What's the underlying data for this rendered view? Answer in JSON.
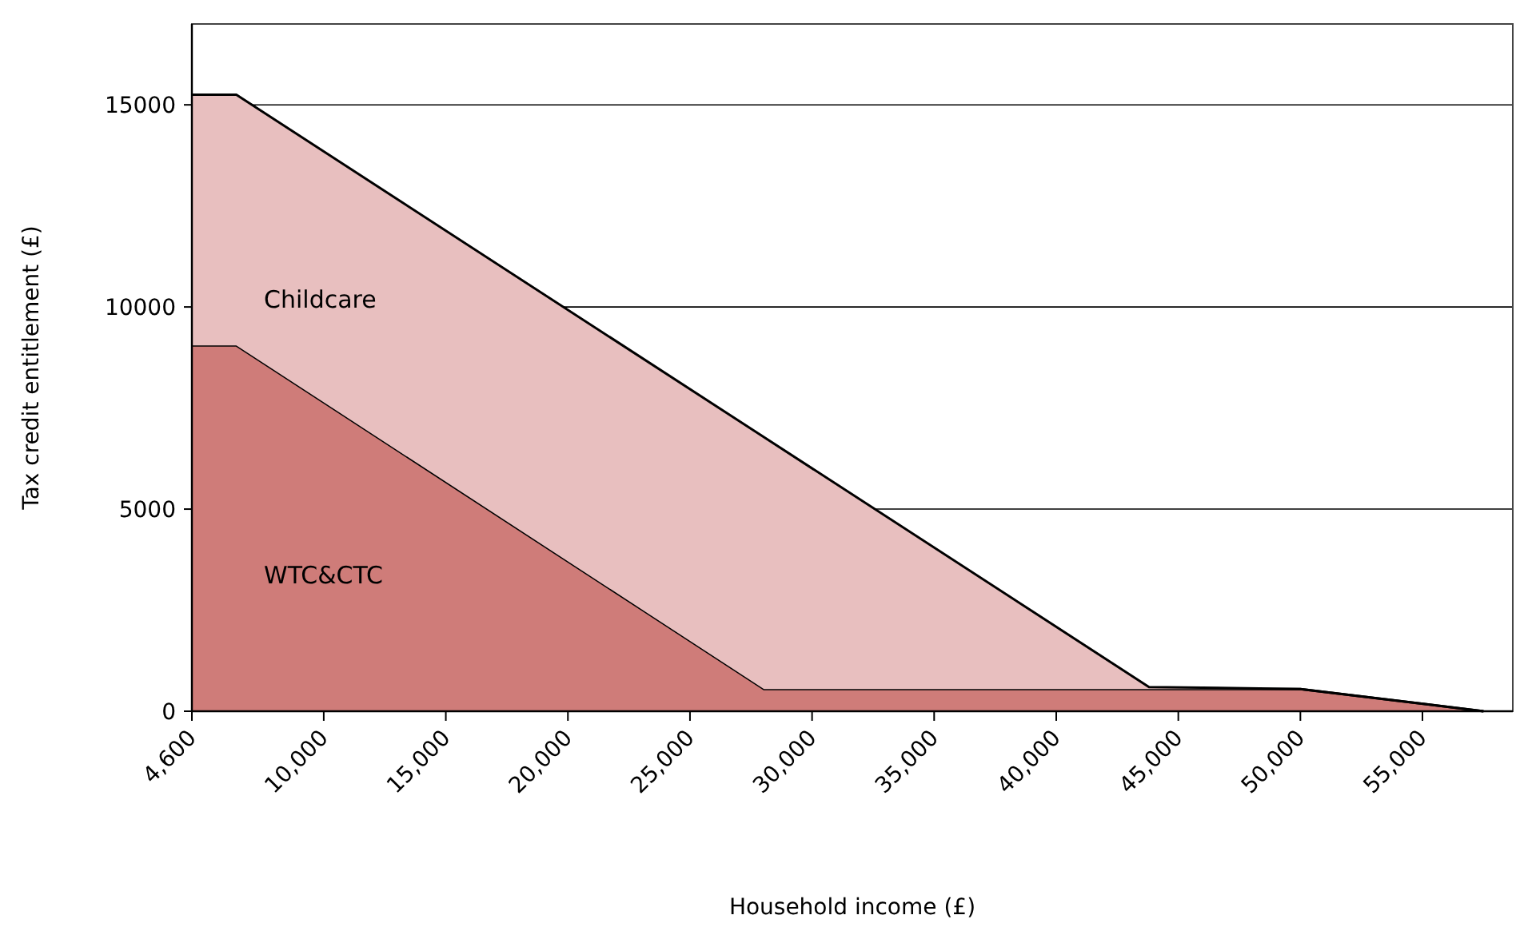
{
  "chart_data": {
    "type": "area",
    "stacked": true,
    "xlabel": "Household income (£)",
    "ylabel": "Tax credit entitlement (£)",
    "x": [
      4600,
      6420,
      28030,
      43800,
      50000,
      57500
    ],
    "series": [
      {
        "name": "WTC&CTC",
        "color": "#cf7c79",
        "values": [
          9050,
          9050,
          550,
          550,
          550,
          0
        ]
      },
      {
        "name": "Childcare",
        "color": "#e8bfbf",
        "values": [
          6200,
          6200,
          6230,
          50,
          0,
          0
        ]
      }
    ],
    "xlim": [
      4600,
      58700
    ],
    "xticks": [
      {
        "value": 4600,
        "label": "4,600"
      },
      {
        "value": 10000,
        "label": "10,000"
      },
      {
        "value": 15000,
        "label": "15,000"
      },
      {
        "value": 20000,
        "label": "20,000"
      },
      {
        "value": 25000,
        "label": "25,000"
      },
      {
        "value": 30000,
        "label": "30,000"
      },
      {
        "value": 35000,
        "label": "35,000"
      },
      {
        "value": 40000,
        "label": "40,000"
      },
      {
        "value": 45000,
        "label": "45,000"
      },
      {
        "value": 50000,
        "label": "50,000"
      },
      {
        "value": 55000,
        "label": "55,000"
      }
    ],
    "ylim": [
      0,
      17000
    ],
    "yticks": [
      0,
      5000,
      10000,
      15000
    ],
    "grid": "y"
  }
}
